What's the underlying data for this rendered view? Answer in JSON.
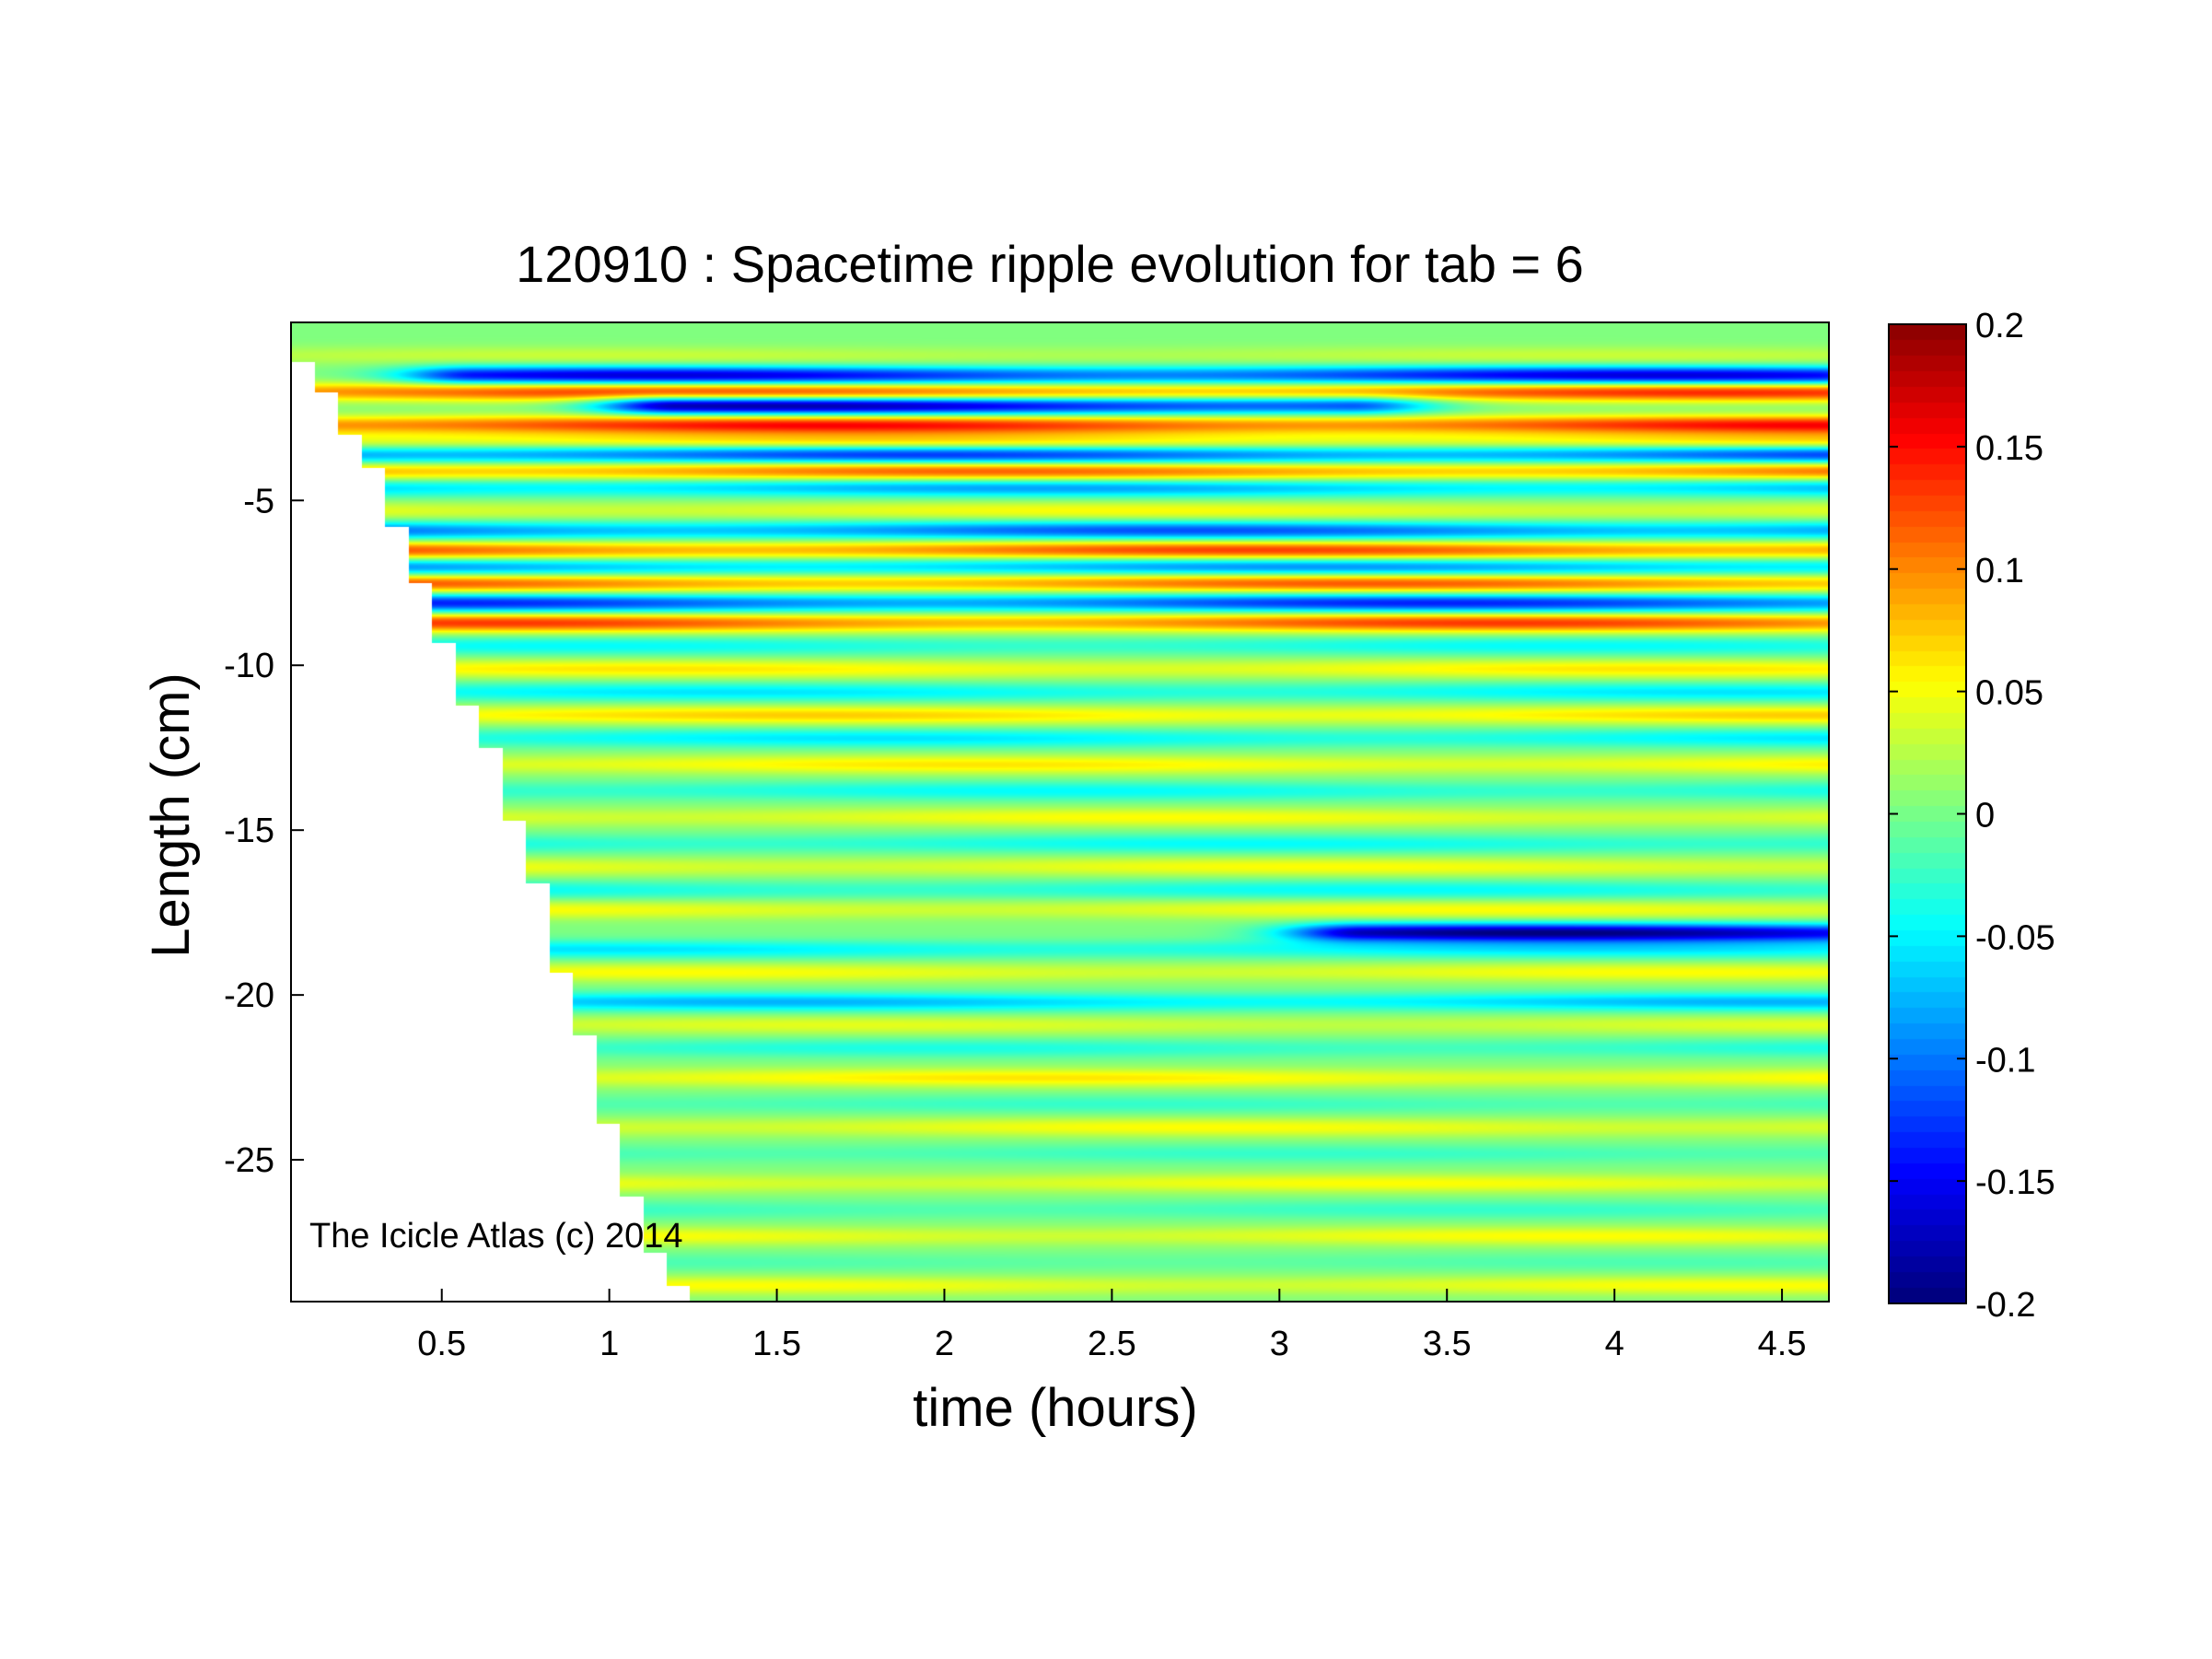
{
  "chart_data": {
    "type": "heatmap",
    "title": "120910 : Spacetime ripple evolution for tab = 6",
    "xlabel": "time (hours)",
    "ylabel": "Length (cm)",
    "xlim": [
      0.05,
      4.64
    ],
    "ylim": [
      -29.3,
      0.4
    ],
    "x_ticks": [
      0.5,
      1,
      1.5,
      2,
      2.5,
      3,
      3.5,
      4,
      4.5
    ],
    "x_tick_labels": [
      "0.5",
      "1",
      "1.5",
      "2",
      "2.5",
      "3",
      "3.5",
      "4",
      "4.5"
    ],
    "y_ticks": [
      -5,
      -10,
      -15,
      -20,
      -25
    ],
    "y_tick_labels": [
      "-5",
      "-10",
      "-15",
      "-20",
      "-25"
    ],
    "colorbar": {
      "colormap": "jet",
      "clim": [
        -0.2,
        0.2
      ],
      "ticks": [
        0.2,
        0.15,
        0.1,
        0.05,
        0,
        -0.05,
        -0.1,
        -0.15,
        -0.2
      ],
      "tick_labels": [
        "0.2",
        "0.15",
        "0.1",
        "0.05",
        "0",
        "-0.05",
        "-0.1",
        "-0.15",
        "-0.2"
      ]
    },
    "grid": false,
    "annotation": "The Icicle Atlas (c) 2014",
    "data_extent": {
      "description_growth_front": [
        {
          "t": 0.05,
          "length": -0.8
        },
        {
          "t": 0.12,
          "length": -1.7
        },
        {
          "t": 0.19,
          "length": -3.0
        },
        {
          "t": 0.26,
          "length": -4.0
        },
        {
          "t": 0.33,
          "length": -5.8
        },
        {
          "t": 0.4,
          "length": -7.5
        },
        {
          "t": 0.47,
          "length": -9.3
        },
        {
          "t": 0.54,
          "length": -11.2
        },
        {
          "t": 0.61,
          "length": -12.5
        },
        {
          "t": 0.68,
          "length": -14.7
        },
        {
          "t": 0.75,
          "length": -16.6
        },
        {
          "t": 0.82,
          "length": -19.3
        },
        {
          "t": 0.89,
          "length": -21.2
        },
        {
          "t": 0.96,
          "length": -23.9
        },
        {
          "t": 1.03,
          "length": -26.1
        },
        {
          "t": 1.1,
          "length": -27.8
        },
        {
          "t": 1.17,
          "length": -28.8
        },
        {
          "t": 1.24,
          "length": -29.3
        }
      ]
    },
    "bands": [
      {
        "length": -0.6,
        "amplitude": 0.03
      },
      {
        "length": -1.2,
        "amplitude": -0.17,
        "t_range": [
          0.6,
          4.6
        ]
      },
      {
        "length": -1.7,
        "amplitude": 0.14
      },
      {
        "length": -2.1,
        "amplitude": -0.2,
        "t_range": [
          1.2,
          3.2
        ]
      },
      {
        "length": -2.7,
        "amplitude": 0.15
      },
      {
        "length": -3.2,
        "amplitude": 0.07
      },
      {
        "length": -3.6,
        "amplitude": -0.14
      },
      {
        "length": -4.1,
        "amplitude": 0.12
      },
      {
        "length": -4.6,
        "amplitude": -0.09
      },
      {
        "length": -5.3,
        "amplitude": 0.05
      },
      {
        "length": -5.9,
        "amplitude": -0.12
      },
      {
        "length": -6.5,
        "amplitude": 0.13
      },
      {
        "length": -7.0,
        "amplitude": -0.1
      },
      {
        "length": -7.5,
        "amplitude": 0.12
      },
      {
        "length": -8.1,
        "amplitude": -0.14
      },
      {
        "length": -8.7,
        "amplitude": 0.13
      },
      {
        "length": -9.4,
        "amplitude": -0.05
      },
      {
        "length": -10.1,
        "amplitude": 0.06
      },
      {
        "length": -10.8,
        "amplitude": -0.06
      },
      {
        "length": -11.5,
        "amplitude": 0.07
      },
      {
        "length": -12.2,
        "amplitude": -0.06
      },
      {
        "length": -13.0,
        "amplitude": 0.06
      },
      {
        "length": -13.8,
        "amplitude": -0.05
      },
      {
        "length": -14.6,
        "amplitude": 0.05
      },
      {
        "length": -15.4,
        "amplitude": -0.05
      },
      {
        "length": -16.1,
        "amplitude": 0.05
      },
      {
        "length": -16.8,
        "amplitude": -0.05
      },
      {
        "length": -17.4,
        "amplitude": 0.05
      },
      {
        "length": -18.1,
        "amplitude": -0.2,
        "t_range": [
          3.25,
          4.64
        ]
      },
      {
        "length": -18.6,
        "amplitude": -0.06
      },
      {
        "length": -19.3,
        "amplitude": 0.05
      },
      {
        "length": -20.2,
        "amplitude": -0.08
      },
      {
        "length": -20.9,
        "amplitude": 0.04
      },
      {
        "length": -21.6,
        "amplitude": -0.04
      },
      {
        "length": -22.5,
        "amplitude": 0.06
      },
      {
        "length": -23.3,
        "amplitude": -0.03
      },
      {
        "length": -24.0,
        "amplitude": 0.05
      },
      {
        "length": -24.8,
        "amplitude": -0.03
      },
      {
        "length": -25.7,
        "amplitude": 0.05
      },
      {
        "length": -26.5,
        "amplitude": -0.03
      },
      {
        "length": -27.3,
        "amplitude": 0.05
      },
      {
        "length": -28.1,
        "amplitude": -0.02
      },
      {
        "length": -28.8,
        "amplitude": 0.05
      }
    ]
  }
}
